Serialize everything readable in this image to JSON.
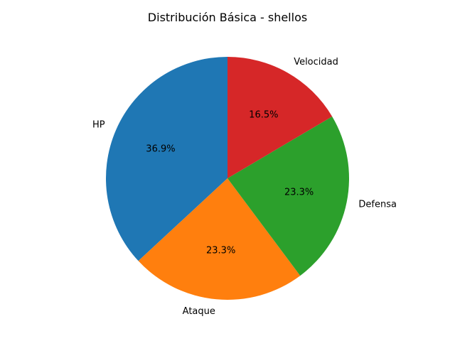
{
  "chart_data": {
    "type": "pie",
    "title": "Distribución Básica - shellos",
    "categories": [
      "HP",
      "Ataque",
      "Defensa",
      "Velocidad"
    ],
    "values": [
      36.9,
      23.3,
      23.3,
      16.5
    ],
    "value_labels": [
      "36.9%",
      "23.3%",
      "23.3%",
      "16.5%"
    ],
    "colors": [
      "#1f77b4",
      "#ff7f0e",
      "#2ca02c",
      "#d62728"
    ],
    "start_angle_deg": 90,
    "direction": "counterclockwise",
    "legend": "none"
  }
}
